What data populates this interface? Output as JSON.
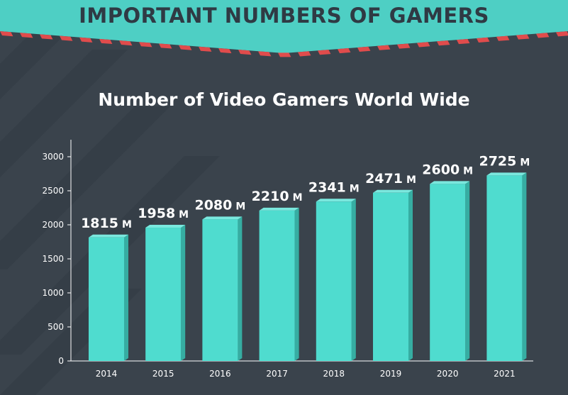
{
  "banner": {
    "title": "IMPORTANT NUMBERS OF GAMERS"
  },
  "colors": {
    "background": "#3a434c",
    "banner": "#4ecfc4",
    "bar_front": "#4fdccf",
    "bar_side": "#36ada2",
    "bar_top": "#7ae8de",
    "stripe_red": "#e04c4c",
    "text": "#ffffff",
    "title_dark": "#2f3a44"
  },
  "chart_data": {
    "type": "bar",
    "title": "Number of Video Gamers World Wide",
    "categories": [
      "2014",
      "2015",
      "2016",
      "2017",
      "2018",
      "2019",
      "2020",
      "2021"
    ],
    "values": [
      1815,
      1958,
      2080,
      2210,
      2341,
      2471,
      2600,
      2725
    ],
    "value_labels": [
      "1815",
      "1958",
      "2080",
      "2210",
      "2341",
      "2471",
      "2600",
      "2725"
    ],
    "unit": "M",
    "ylim": [
      0,
      3000
    ],
    "yticks": [
      "0",
      "500",
      "1000",
      "1500",
      "2000",
      "2500",
      "3000"
    ],
    "xlabel": "",
    "ylabel": "",
    "grid": false
  }
}
